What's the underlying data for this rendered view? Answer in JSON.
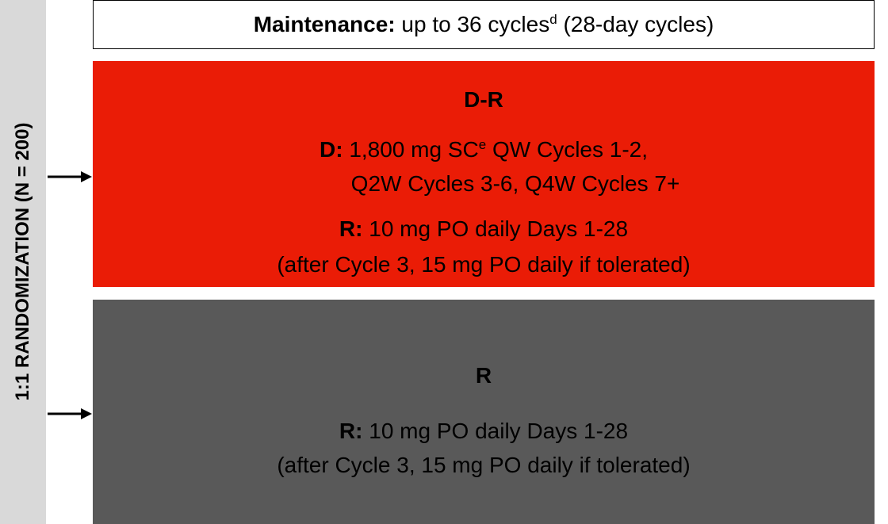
{
  "side_label": "1:1 RANDOMIZATION (N = 200)",
  "maintenance": {
    "label": "Maintenance:",
    "text": "up to 36 cycles",
    "superscript": "d",
    "suffix": "(28-day cycles)"
  },
  "arms": [
    {
      "title": "D-R",
      "lines": [
        {
          "label": "D:",
          "text": "1,800 mg SC",
          "superscript": "e",
          "suffix": "QW Cycles 1-2,"
        },
        {
          "text": "Q2W Cycles 3-6, Q4W Cycles 7+"
        },
        {
          "label": "R:",
          "text": "10 mg PO daily Days 1-28"
        },
        {
          "text": "(after Cycle 3, 15 mg PO daily if tolerated)"
        }
      ]
    },
    {
      "title": "R",
      "lines": [
        {
          "label": "R:",
          "text": "10 mg PO daily Days 1-28"
        },
        {
          "text": "(after Cycle 3, 15 mg PO daily if tolerated)"
        }
      ]
    }
  ]
}
